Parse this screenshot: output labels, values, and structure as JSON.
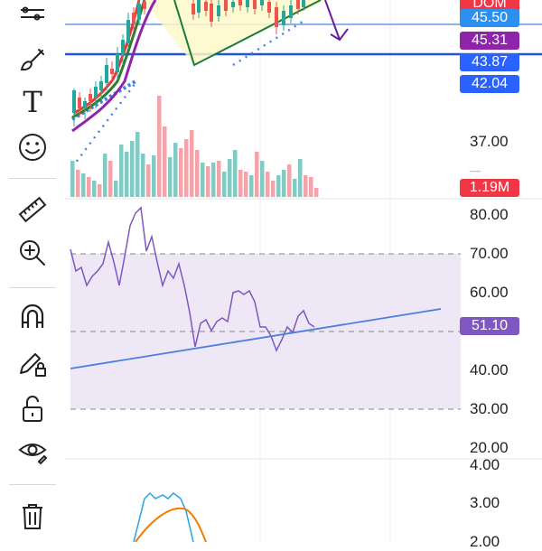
{
  "toolbar": {
    "tools": [
      {
        "name": "lines-icon",
        "label": "trend line tools"
      },
      {
        "name": "brush-icon",
        "label": "brush"
      },
      {
        "name": "text-icon",
        "label": "T"
      },
      {
        "name": "emoji-icon",
        "label": "emoji"
      },
      {
        "name": "ruler-icon",
        "label": "measure"
      },
      {
        "name": "zoom-in-icon",
        "label": "zoom in"
      },
      {
        "name": "magnet-icon",
        "label": "magnet"
      },
      {
        "name": "lock-pencil-icon",
        "label": "lock drawing"
      },
      {
        "name": "unlock-icon",
        "label": "unlock"
      },
      {
        "name": "eye-icon",
        "label": "hide"
      },
      {
        "name": "trash-icon",
        "label": "remove"
      }
    ],
    "text_glyph": "T"
  },
  "price_pane": {
    "tags": [
      {
        "label": "45.50",
        "color": "#2d8ff0"
      },
      {
        "label": "45.31",
        "color": "#8e24aa"
      },
      {
        "label": "43.87",
        "color": "#2962ff"
      },
      {
        "label": "42.04",
        "color": "#2962ff"
      }
    ],
    "partial_top_tag": {
      "label": "DOM",
      "color": "#f23645"
    },
    "ticks": [
      "37.00"
    ],
    "volume_tag": {
      "label": "1.19M",
      "color": "#f23645"
    }
  },
  "rsi_pane": {
    "ticks": [
      "80.00",
      "70.00",
      "60.00",
      "40.00",
      "30.00",
      "20.00"
    ],
    "value_tag": {
      "label": "51.10",
      "color": "#7e57c2"
    },
    "band_color": "#ede7f6",
    "line_color": "#7e57c2"
  },
  "macd_pane": {
    "ticks": [
      "4.00",
      "3.00",
      "2.00"
    ]
  },
  "colors": {
    "up": "#26a69a",
    "down": "#ef5350",
    "up_volume": "#80cbc4",
    "down_volume": "#f4a3a8",
    "trend_blue": "#4a7fe0"
  }
}
